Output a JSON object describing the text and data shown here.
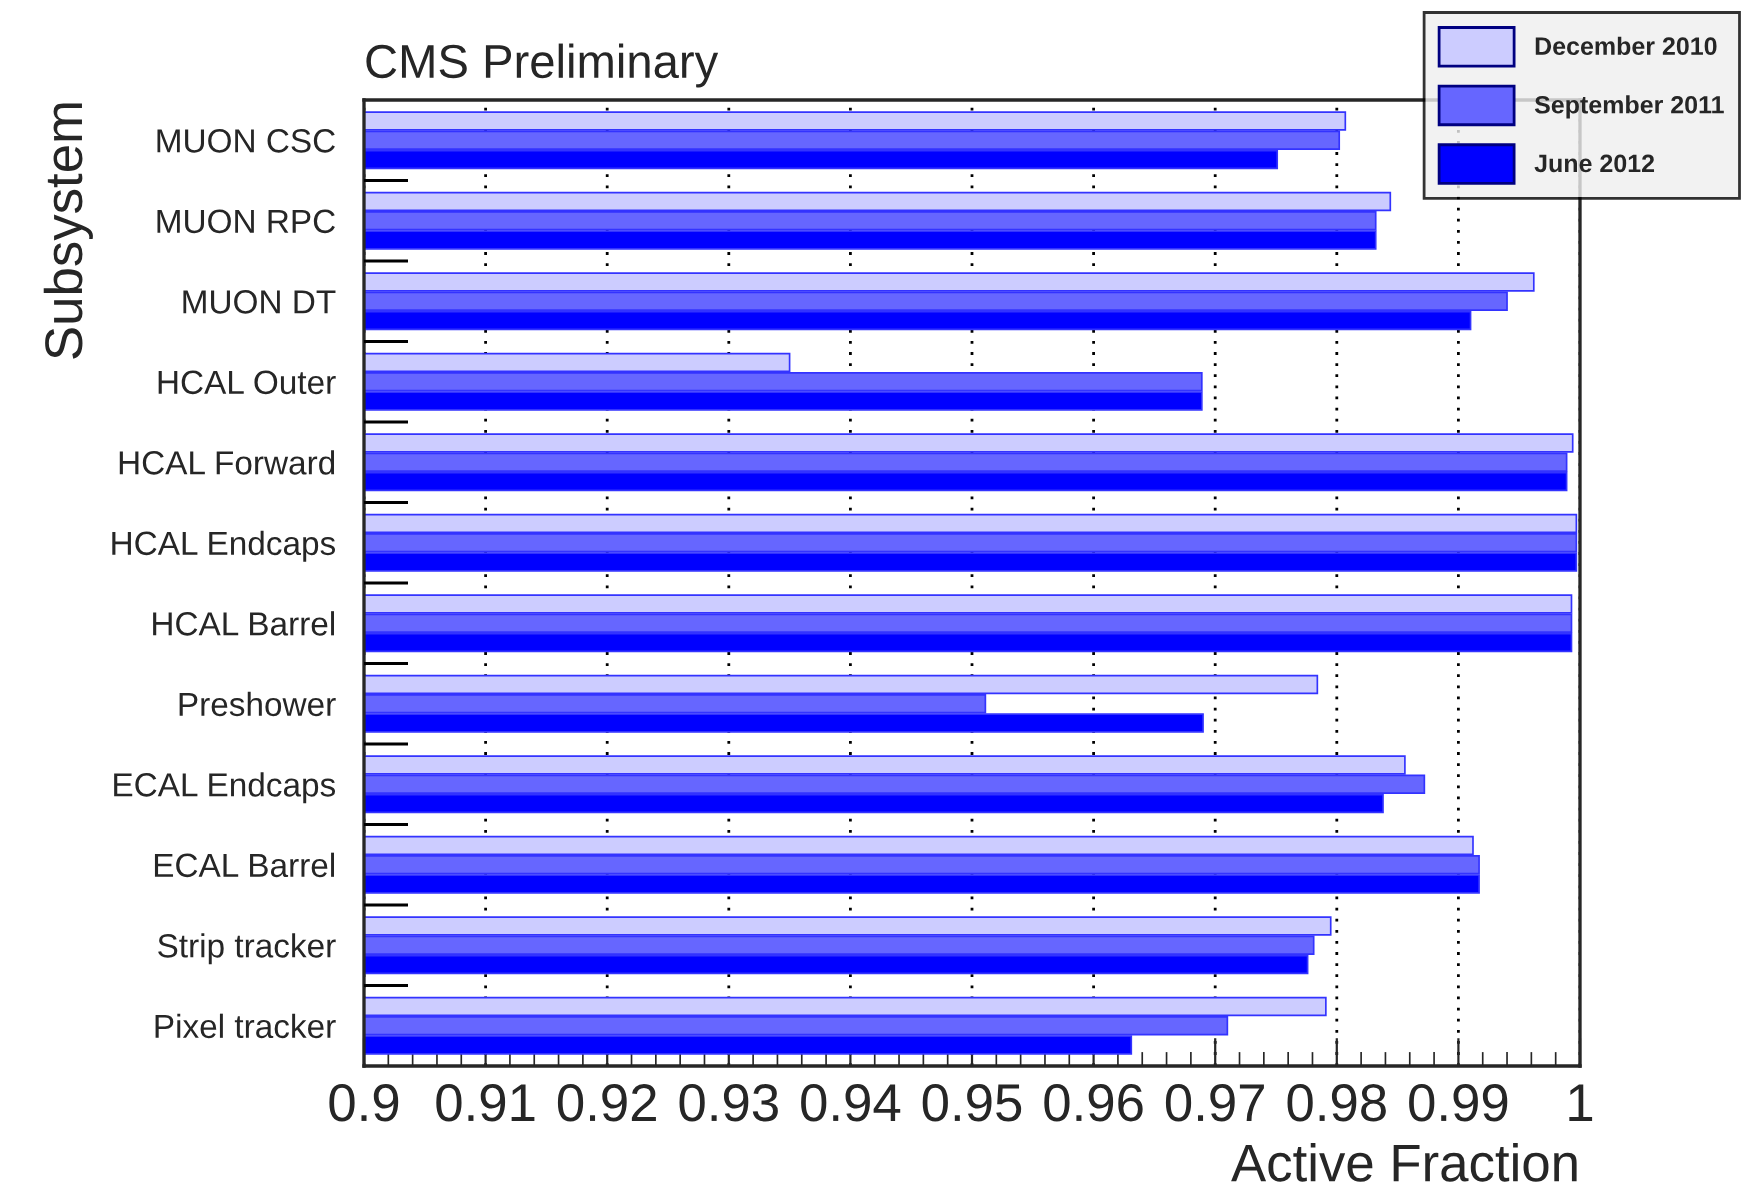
{
  "chart_data": {
    "type": "bar",
    "orientation": "horizontal",
    "title": "CMS Preliminary",
    "xlabel": "Active Fraction",
    "ylabel": "Subsystem",
    "categories": [
      "MUON CSC",
      "MUON RPC",
      "MUON DT",
      "HCAL Outer",
      "HCAL Forward",
      "HCAL Endcaps",
      "HCAL Barrel",
      "Preshower",
      "ECAL Endcaps",
      "ECAL Barrel",
      "Strip tracker",
      "Pixel tracker"
    ],
    "series": [
      {
        "name": "December 2010",
        "color": "#ccccff",
        "values": [
          0.9807,
          0.9844,
          0.9962,
          0.935,
          0.9994,
          0.9997,
          0.9993,
          0.9784,
          0.9856,
          0.9912,
          0.9795,
          0.9791
        ]
      },
      {
        "name": "September 2011",
        "color": "#6666ff",
        "values": [
          0.9802,
          0.9832,
          0.994,
          0.9689,
          0.9989,
          0.9997,
          0.9993,
          0.9511,
          0.9872,
          0.9917,
          0.9781,
          0.971
        ]
      },
      {
        "name": "June 2012",
        "color": "#0000ff",
        "values": [
          0.9751,
          0.9832,
          0.991,
          0.9689,
          0.9989,
          0.9997,
          0.9993,
          0.969,
          0.9838,
          0.9917,
          0.9776,
          0.9631
        ]
      }
    ],
    "xlim": [
      0.9,
      1.0
    ],
    "xticks": [
      0.9,
      0.91,
      0.92,
      0.93,
      0.94,
      0.95,
      0.96,
      0.97,
      0.98,
      0.99,
      1
    ],
    "grid": "x",
    "legend": "top right"
  }
}
